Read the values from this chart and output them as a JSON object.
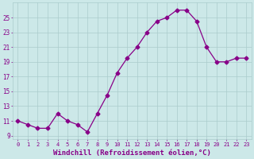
{
  "x": [
    0,
    1,
    2,
    3,
    4,
    5,
    6,
    7,
    8,
    9,
    10,
    11,
    12,
    13,
    14,
    15,
    16,
    17,
    18,
    19,
    20,
    21,
    22,
    23
  ],
  "y": [
    11.0,
    10.5,
    10.0,
    10.0,
    12.0,
    11.0,
    10.5,
    9.5,
    12.0,
    14.5,
    17.5,
    19.5,
    21.0,
    23.0,
    24.5,
    25.0,
    26.0,
    26.0,
    24.5,
    21.0,
    19.0,
    19.0,
    19.5,
    19.5
  ],
  "line_color": "#880088",
  "marker": "D",
  "markersize": 2.5,
  "linewidth": 0.9,
  "xlabel": "Windchill (Refroidissement éolien,°C)",
  "xlabel_fontsize": 6.5,
  "ylabel_ticks": [
    9,
    11,
    13,
    15,
    17,
    19,
    21,
    23,
    25
  ],
  "xtick_labels": [
    "0",
    "1",
    "2",
    "3",
    "4",
    "5",
    "6",
    "7",
    "8",
    "9",
    "10",
    "11",
    "12",
    "13",
    "14",
    "15",
    "16",
    "17",
    "18",
    "19",
    "20",
    "21",
    "22",
    "23"
  ],
  "xlim": [
    -0.5,
    23.5
  ],
  "ylim": [
    8.5,
    27.0
  ],
  "bg_color": "#cce8e8",
  "grid_color": "#aacccc",
  "tick_color": "#880088",
  "ytick_fontsize": 5.5,
  "xtick_fontsize": 5.0
}
